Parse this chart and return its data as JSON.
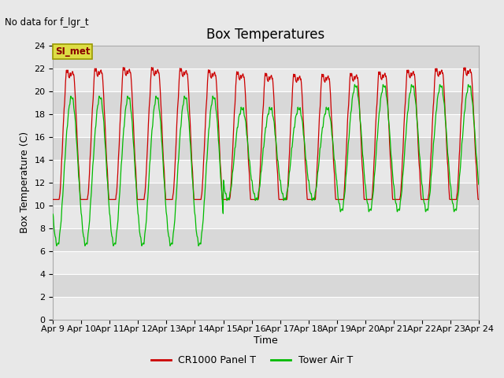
{
  "title": "Box Temperatures",
  "no_data_text": "No data for f_lgr_t",
  "legend_box_label": "SI_met",
  "ylabel": "Box Temperature (C)",
  "xlabel": "Time",
  "ylim": [
    0,
    24
  ],
  "yticks": [
    0,
    2,
    4,
    6,
    8,
    10,
    12,
    14,
    16,
    18,
    20,
    22,
    24
  ],
  "xtick_labels": [
    "Apr 9",
    "Apr 10",
    "Apr 11",
    "Apr 12",
    "Apr 13",
    "Apr 14",
    "Apr 15",
    "Apr 16",
    "Apr 17",
    "Apr 18",
    "Apr 19",
    "Apr 20",
    "Apr 21",
    "Apr 22",
    "Apr 23",
    "Apr 24"
  ],
  "line1_color": "#cc0000",
  "line2_color": "#00bb00",
  "line1_label": "CR1000 Panel T",
  "line2_label": "Tower Air T",
  "bg_color": "#e8e8e8",
  "plot_bg_color": "#d8d8d8",
  "grid_color": "#ffffff",
  "title_fontsize": 12,
  "label_fontsize": 9,
  "tick_fontsize": 8,
  "legend_box_color": "#dddd44",
  "legend_box_text_color": "#880000",
  "legend_box_edge_color": "#999900"
}
